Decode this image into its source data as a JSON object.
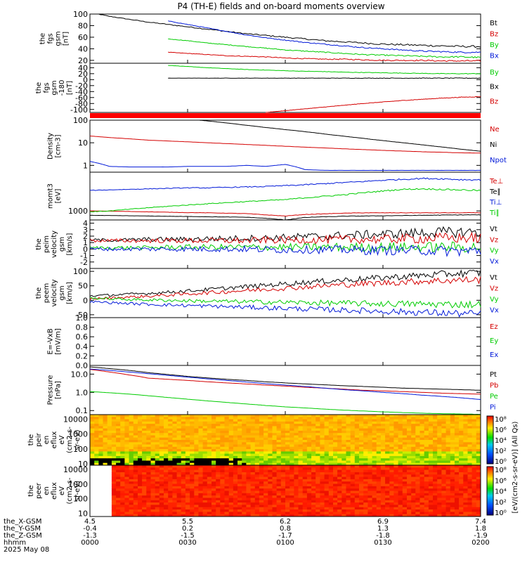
{
  "title": "P4 (TH-E) fields and on-board moments overview",
  "colors": {
    "black": "#000000",
    "red": "#d40000",
    "green": "#00cc00",
    "blue": "#0018d8"
  },
  "time_axis": {
    "x_range": [
      "00:00",
      "02:00"
    ],
    "ephemeris": [
      {
        "label": "the_X-GSM",
        "values": [
          "4.5",
          "5.5",
          "6.2",
          "6.9",
          "7.4"
        ]
      },
      {
        "label": "the_Y-GSM",
        "values": [
          "-0.4",
          "0.2",
          "0.8",
          "1.3",
          "1.8"
        ]
      },
      {
        "label": "the_Z-GSM",
        "values": [
          "-1.3",
          "-1.5",
          "-1.7",
          "-1.8",
          "-1.9"
        ]
      },
      {
        "label": "hhmm",
        "values": [
          "0000",
          "0030",
          "0100",
          "0130",
          "0200"
        ]
      }
    ],
    "date": "2025 May 08"
  },
  "chart_data": [
    {
      "id": "fgs_gsm",
      "type": "line",
      "ylabel": [
        "the",
        "fgs",
        "gsm",
        "[nT]"
      ],
      "ylim": [
        15,
        100
      ],
      "yticks": [
        20,
        40,
        60,
        80,
        100
      ],
      "series": [
        {
          "name": "Bt",
          "color": "black",
          "start": 0.0,
          "values": [
            103,
            96,
            91,
            86,
            82,
            78,
            74,
            70,
            66,
            63,
            60,
            57,
            54,
            52,
            50,
            48,
            47,
            46,
            45,
            44,
            44
          ]
        },
        {
          "name": "Bz",
          "color": "red",
          "start": 0.2,
          "values": [
            34,
            32,
            30,
            28,
            27,
            26,
            24,
            23,
            22,
            22,
            21,
            20,
            20,
            20,
            19,
            19,
            19
          ]
        },
        {
          "name": "By",
          "color": "green",
          "start": 0.2,
          "values": [
            57,
            54,
            50,
            47,
            44,
            41,
            38,
            36,
            34,
            32,
            30,
            29,
            28,
            27,
            26,
            26,
            25
          ]
        },
        {
          "name": "Bx",
          "color": "blue",
          "start": 0.2,
          "values": [
            88,
            82,
            76,
            70,
            64,
            59,
            55,
            51,
            48,
            45,
            42,
            40,
            38,
            36,
            35,
            34,
            34
          ]
        }
      ]
    },
    {
      "id": "fgs_gsm_180",
      "type": "line",
      "ylabel": [
        "the",
        "fgs",
        "gsm",
        "-180",
        "[nT]"
      ],
      "ylim": [
        -110,
        55
      ],
      "yticks": [
        -100,
        -80,
        -60,
        -40,
        -20,
        0,
        20,
        40
      ],
      "series": [
        {
          "name": "By",
          "color": "green",
          "start": 0.2,
          "values": [
            48,
            44,
            40,
            37,
            34,
            32,
            30,
            28,
            27,
            25,
            24,
            23,
            22,
            21,
            20,
            20,
            20
          ]
        },
        {
          "name": "Bx",
          "color": "black",
          "start": 0.2,
          "values": [
            5,
            5,
            5,
            5,
            5,
            5,
            5,
            5,
            5,
            5,
            5,
            5,
            5,
            5,
            5,
            5,
            5
          ]
        },
        {
          "name": "Bz",
          "color": "red",
          "start": 0.45,
          "values": [
            -110,
            -104,
            -98,
            -92,
            -86,
            -80,
            -75,
            -70,
            -66,
            -62,
            -59,
            -57
          ]
        }
      ]
    },
    {
      "id": "density",
      "type": "line",
      "yscale": "log",
      "ylabel": [
        "Density",
        "[cm-3]"
      ],
      "ylim": [
        0.5,
        100
      ],
      "yticks": [
        1,
        10,
        100
      ],
      "yticklabels": [
        "1",
        "10",
        "100"
      ],
      "series": [
        {
          "name": "Ne",
          "color": "red",
          "start": 0.0,
          "values": [
            20,
            17,
            15,
            13,
            12,
            11,
            10,
            9.2,
            8.4,
            7.7,
            7.0,
            6.4,
            5.9,
            5.4,
            5.0,
            4.6,
            4.3,
            4.0,
            3.8,
            3.6,
            3.5
          ]
        },
        {
          "name": "Ni",
          "color": "black",
          "start": 0.28,
          "values": [
            100,
            80,
            62,
            48,
            38,
            30,
            23,
            18,
            14,
            11,
            8.7,
            6.8,
            5.3,
            4.2
          ]
        },
        {
          "name": "Npot",
          "color": "blue",
          "start": 0.0,
          "values": [
            1.5,
            0.9,
            0.85,
            0.85,
            0.85,
            0.9,
            0.9,
            0.9,
            1.0,
            0.9,
            1.1,
            0.65,
            0.6,
            0.6,
            0.6,
            0.6,
            0.6,
            0.6,
            0.6,
            0.6,
            0.6
          ]
        }
      ]
    },
    {
      "id": "momt3",
      "type": "line",
      "yscale": "log",
      "ylabel": [
        "momt3",
        "[eV]"
      ],
      "ylim": [
        600,
        9000
      ],
      "yticks": [
        1000
      ],
      "yticklabels": [
        "1000"
      ],
      "series": [
        {
          "name": "Te⊥",
          "color": "red",
          "start": 0.0,
          "values": [
            1000,
            990,
            970,
            950,
            930,
            910,
            900,
            880,
            860,
            800,
            750,
            820,
            850,
            880,
            900,
            900,
            900,
            900,
            900,
            900,
            900
          ]
        },
        {
          "name": "Te∥",
          "color": "black",
          "start": 0.0,
          "values": [
            780,
            770,
            760,
            750,
            740,
            730,
            720,
            710,
            700,
            660,
            600,
            690,
            720,
            740,
            750,
            760,
            770,
            780,
            790,
            800,
            800
          ]
        },
        {
          "name": "Ti⊥",
          "color": "blue",
          "start": 0.0,
          "values": [
            3200,
            3300,
            3400,
            3500,
            3600,
            3700,
            3700,
            3800,
            3900,
            4000,
            4200,
            4400,
            4700,
            5000,
            5300,
            5700,
            6000,
            6300,
            6200,
            5900,
            5800
          ]
        },
        {
          "name": "Ti∥",
          "color": "green",
          "start": 0.0,
          "values": [
            950,
            1000,
            1100,
            1200,
            1300,
            1400,
            1500,
            1600,
            1700,
            1800,
            1900,
            2100,
            2300,
            2500,
            2800,
            3100,
            3400,
            3500,
            3400,
            3300,
            3200
          ]
        }
      ]
    },
    {
      "id": "peim_velocity",
      "type": "line",
      "ylabel": [
        "the",
        "peim",
        "velocity",
        "gsm",
        "[km/s]"
      ],
      "ylim": [
        -3,
        4.5
      ],
      "yticks": [
        -2,
        -1,
        0,
        1,
        2,
        3,
        4
      ],
      "series": [
        {
          "name": "Vt",
          "color": "black",
          "start": 0.0,
          "values": [
            1.4,
            1.4,
            1.4,
            1.5,
            1.5,
            1.5,
            1.6,
            1.6,
            1.7,
            1.7,
            1.8,
            1.9,
            2.0,
            2.1,
            2.2,
            2.3,
            2.4,
            2.5,
            2.6,
            2.6,
            2.7
          ]
        },
        {
          "name": "Vz",
          "color": "red",
          "start": 0.0,
          "values": [
            1.3,
            1.3,
            1.3,
            1.3,
            1.3,
            1.3,
            1.3,
            1.3,
            1.3,
            1.4,
            1.4,
            1.4,
            1.4,
            1.5,
            1.5,
            1.5,
            1.6,
            1.6,
            1.7,
            1.7,
            1.7
          ]
        },
        {
          "name": "Vy",
          "color": "green",
          "start": 0.0,
          "values": [
            0.2,
            0.2,
            0.2,
            0.2,
            0.3,
            0.3,
            0.3,
            0.3,
            0.3,
            0.3,
            0.3,
            0.3,
            0.3,
            0.3,
            0.3,
            0.3,
            0.3,
            0.3,
            0.3,
            0.3,
            0.3
          ]
        },
        {
          "name": "Vx",
          "color": "blue",
          "start": 0.0,
          "values": [
            0,
            0,
            0,
            0,
            0,
            0,
            0,
            0,
            0,
            -0.1,
            -0.1,
            -0.1,
            -0.1,
            -0.1,
            -0.2,
            -0.2,
            -0.2,
            -0.2,
            -0.3,
            -0.3,
            -0.3
          ]
        }
      ]
    },
    {
      "id": "peem_velocity",
      "type": "line",
      "ylabel": [
        "the",
        "peem",
        "velocity",
        "gsm",
        "[km/s]"
      ],
      "ylim": [
        -60,
        110
      ],
      "yticks": [
        -50,
        0,
        50,
        100
      ],
      "series": [
        {
          "name": "Vt",
          "color": "black",
          "start": 0.0,
          "values": [
            15,
            18,
            21,
            24,
            28,
            32,
            37,
            42,
            47,
            52,
            57,
            62,
            66,
            70,
            74,
            78,
            82,
            86,
            90,
            93,
            95
          ]
        },
        {
          "name": "Vz",
          "color": "red",
          "start": 0.0,
          "values": [
            5,
            8,
            11,
            14,
            18,
            22,
            26,
            30,
            34,
            38,
            42,
            46,
            50,
            54,
            57,
            60,
            63,
            66,
            68,
            70,
            71
          ]
        },
        {
          "name": "Vy",
          "color": "green",
          "start": 0.0,
          "values": [
            8,
            5,
            3,
            1,
            0,
            -2,
            -3,
            -4,
            -5,
            -6,
            -7,
            -8,
            -9,
            -10,
            -11,
            -12,
            -12,
            -13,
            -14,
            -14,
            -15
          ]
        },
        {
          "name": "Vx",
          "color": "blue",
          "start": 0.0,
          "values": [
            -5,
            -8,
            -11,
            -14,
            -16,
            -18,
            -20,
            -22,
            -24,
            -26,
            -28,
            -30,
            -32,
            -34,
            -36,
            -38,
            -40,
            -42,
            -44,
            -46,
            -48
          ]
        }
      ]
    },
    {
      "id": "efield",
      "type": "line",
      "ylabel": [
        "E=-VxB",
        "[mV/m]"
      ],
      "ylim": [
        0,
        1.0
      ],
      "yticks": [
        0.0,
        0.2,
        0.4,
        0.6,
        0.8,
        1.0
      ],
      "yticklabels": [
        "0.0",
        "0.2",
        "0.4",
        "0.6",
        "0.8",
        "1.0"
      ],
      "series": [
        {
          "name": "Ez",
          "color": "red",
          "start": 0.0,
          "values": []
        },
        {
          "name": "Ey",
          "color": "green",
          "start": 0.0,
          "values": []
        },
        {
          "name": "Ex",
          "color": "blue",
          "start": 0.0,
          "values": []
        }
      ]
    },
    {
      "id": "pressure",
      "type": "line",
      "yscale": "log",
      "ylabel": [
        "Pressure",
        "[nPa]"
      ],
      "ylim": [
        0.06,
        30
      ],
      "yticks": [
        0.1,
        1.0,
        10.0
      ],
      "yticklabels": [
        "0.1",
        "1.0",
        "10.0"
      ],
      "series": [
        {
          "name": "Pt",
          "color": "black",
          "start": 0.0,
          "values": [
            25,
            20,
            16,
            12,
            9.5,
            7.5,
            6.2,
            5.2,
            4.5,
            3.8,
            3.3,
            2.9,
            2.6,
            2.3,
            2.1,
            1.9,
            1.7,
            1.6,
            1.5,
            1.4,
            1.3
          ]
        },
        {
          "name": "Pb",
          "color": "red",
          "start": 0.0,
          "values": [
            18,
            13,
            9.0,
            6.0,
            5.2,
            4.5,
            3.8,
            3.3,
            2.9,
            2.5,
            2.2,
            1.9,
            1.7,
            1.5,
            1.3,
            1.2,
            1.1,
            1.0,
            0.9,
            0.85,
            0.8
          ]
        },
        {
          "name": "Pe",
          "color": "green",
          "start": 0.0,
          "values": [
            1.1,
            0.95,
            0.8,
            0.65,
            0.52,
            0.42,
            0.34,
            0.28,
            0.23,
            0.19,
            0.16,
            0.14,
            0.12,
            0.105,
            0.095,
            0.085,
            0.078,
            0.072,
            0.068,
            0.065,
            0.062
          ]
        },
        {
          "name": "Pi",
          "color": "blue",
          "start": 0.0,
          "values": [
            19,
            16,
            13,
            10.5,
            8.5,
            6.8,
            5.5,
            4.5,
            3.7,
            3.0,
            2.5,
            2.1,
            1.7,
            1.4,
            1.2,
            1.0,
            0.85,
            0.7,
            0.6,
            0.5,
            0.4
          ]
        }
      ]
    },
    {
      "id": "peir_eflux",
      "type": "heatmap",
      "yscale": "log",
      "ylabel": [
        "the",
        "peir",
        "en",
        "eflux",
        "eV",
        "(cm2-s-",
        "sr-eV)"
      ],
      "ylim": [
        8,
        20000
      ],
      "yticks": [
        10,
        100,
        1000,
        10000
      ],
      "yticklabels": [
        "10",
        "100",
        "1000",
        "10000"
      ],
      "colorbar": {
        "ticklabels": [
          "10⁰",
          "10²",
          "10⁴",
          "10⁶",
          "10⁸"
        ]
      }
    },
    {
      "id": "peer_eflux",
      "type": "heatmap",
      "yscale": "log",
      "ylabel": [
        "the",
        "peer",
        "en",
        "eflux",
        "eV",
        "(cm2-s-",
        "sr-eV)"
      ],
      "ylim": [
        6,
        20000
      ],
      "yticks": [
        10,
        100,
        1000,
        10000
      ],
      "yticklabels": [
        "10",
        "100",
        "1000",
        "10000"
      ],
      "colorbar": {
        "ticklabels": [
          "10⁰",
          "10²",
          "10⁴",
          "10⁶",
          "10⁸"
        ]
      }
    }
  ],
  "colorbar_label": "[eV/(cm2-s-sr-eV)] (All Qs)"
}
